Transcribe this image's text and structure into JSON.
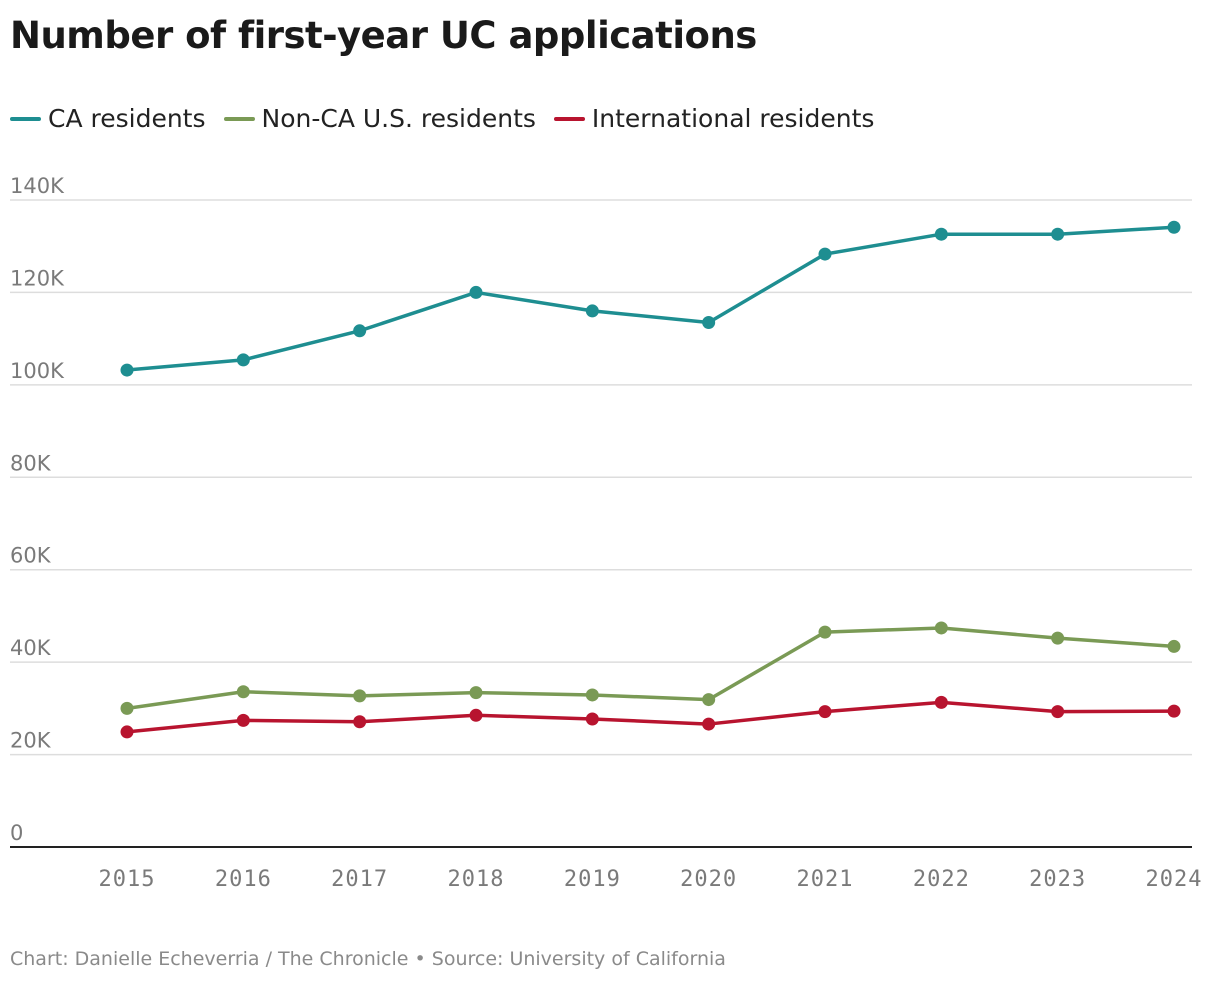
{
  "chart_data": {
    "type": "line",
    "title": "Number of first-year UC applications",
    "categories": [
      "2015",
      "2016",
      "2017",
      "2018",
      "2019",
      "2020",
      "2021",
      "2022",
      "2023",
      "2024"
    ],
    "series": [
      {
        "name": "CA residents",
        "color": "#1e8e91",
        "values": [
          103200,
          105400,
          111700,
          120000,
          116000,
          113500,
          128300,
          132600,
          132600,
          134100
        ]
      },
      {
        "name": "Non-CA U.S. residents",
        "color": "#7a9a55",
        "values": [
          30000,
          33600,
          32700,
          33400,
          32900,
          31900,
          46500,
          47400,
          45200,
          43400
        ]
      },
      {
        "name": "International residents",
        "color": "#b8142f",
        "values": [
          24900,
          27400,
          27100,
          28500,
          27700,
          26600,
          29300,
          31300,
          29300,
          29400
        ]
      }
    ],
    "ylim": [
      0,
      140000
    ],
    "yticks": [
      0,
      20000,
      40000,
      60000,
      80000,
      100000,
      120000,
      140000
    ],
    "ytick_labels": [
      "0",
      "20K",
      "40K",
      "60K",
      "80K",
      "100K",
      "120K",
      "140K"
    ],
    "xlabel": "",
    "ylabel": "",
    "grid": true,
    "legend_position": "top-left"
  },
  "source_text": "Chart: Danielle Echeverria / The Chronicle • Source: University of California",
  "colors": {
    "grid": "#dddddd",
    "axis": "#222222",
    "tick_text": "#7a7a7a"
  }
}
